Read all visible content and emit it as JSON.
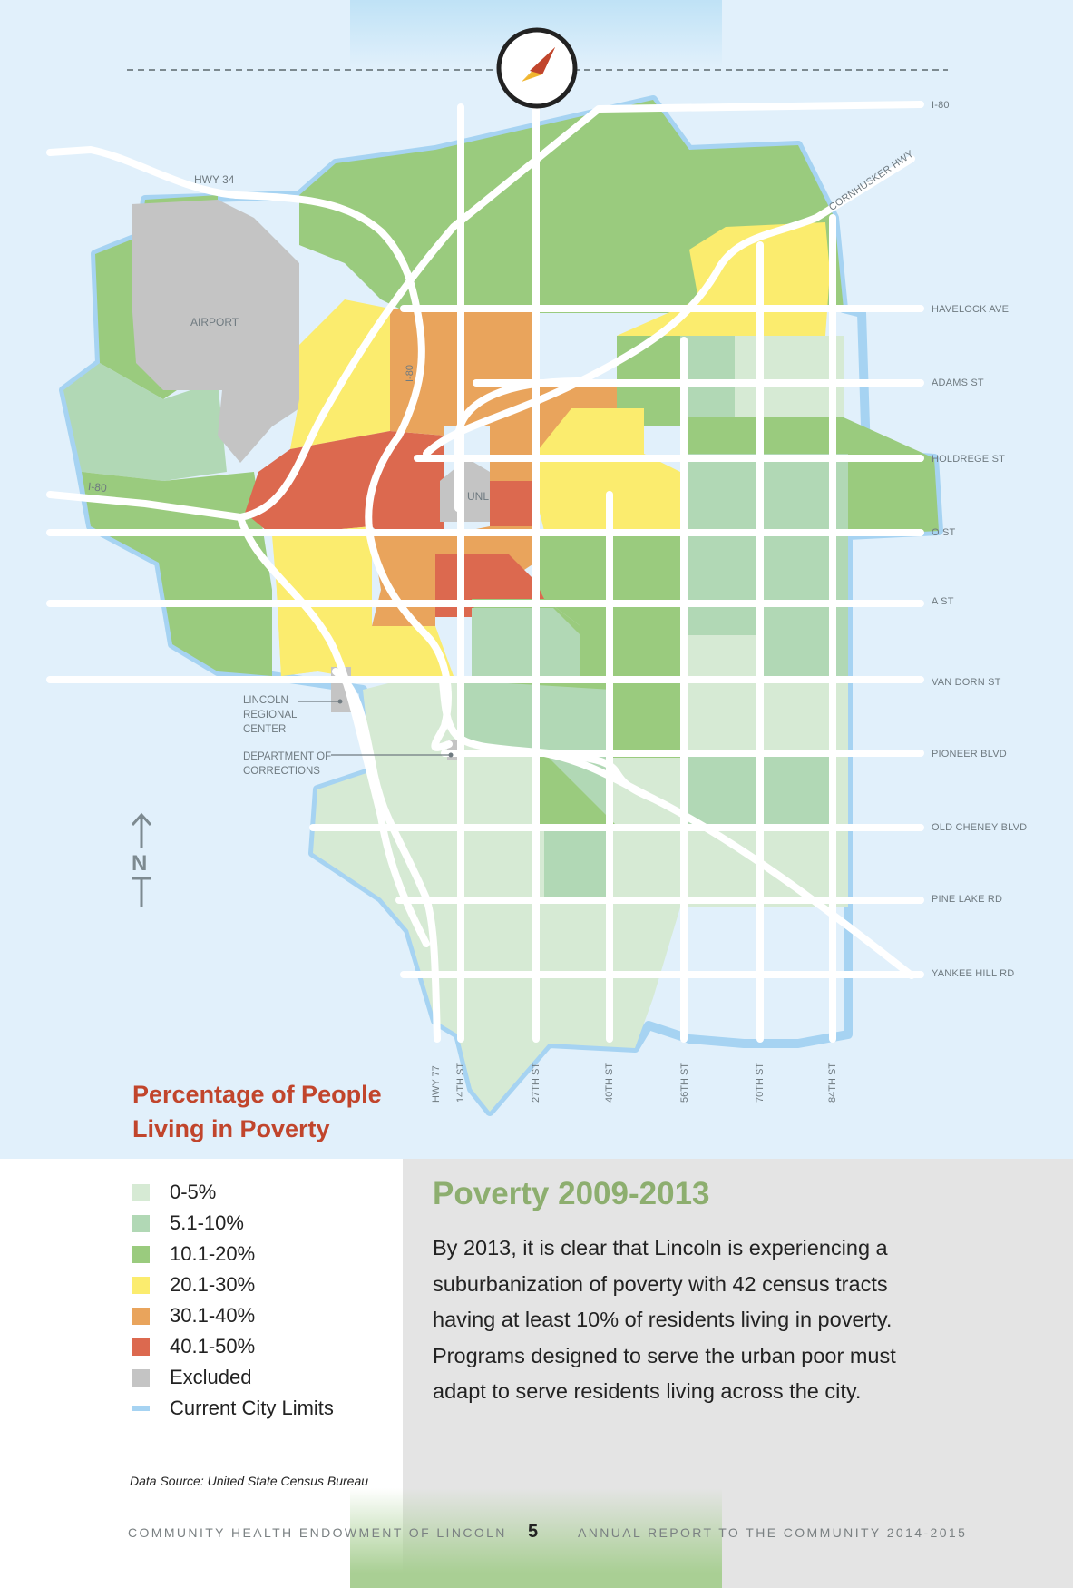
{
  "map": {
    "title_line1": "Percentage of People",
    "title_line2": "Living in Poverty",
    "north_label": "N",
    "place_labels": {
      "airport": "AIRPORT",
      "unl": "UNL",
      "lincoln_regional_center": [
        "LINCOLN",
        "REGIONAL",
        "CENTER"
      ],
      "department_of_corrections": [
        "DEPARTMENT OF",
        "CORRECTIONS"
      ]
    },
    "road_labels": {
      "hwy34": "HWY 34",
      "i80_west": "I-80",
      "i80_diag": "I-80",
      "cornhusker": "CORNHUSKER HWY"
    },
    "east_labels": [
      "I-80",
      "HAVELOCK AVE",
      "ADAMS ST",
      "HOLDREGE ST",
      "O ST",
      "A ST",
      "VAN DORN ST",
      "PIONEER BLVD",
      "OLD CHENEY BLVD",
      "PINE LAKE RD",
      "YANKEE HILL RD"
    ],
    "south_labels": [
      "HWY 77",
      "14TH ST",
      "27TH ST",
      "40TH ST",
      "56TH ST",
      "70TH ST",
      "84TH ST"
    ]
  },
  "legend": {
    "items": [
      {
        "label": "0-5%",
        "color": "#d6ead4"
      },
      {
        "label": "5.1-10%",
        "color": "#b1d8b5"
      },
      {
        "label": "10.1-20%",
        "color": "#9acb7e"
      },
      {
        "label": "20.1-30%",
        "color": "#fbec6e"
      },
      {
        "label": "30.1-40%",
        "color": "#e9a45c"
      },
      {
        "label": "40.1-50%",
        "color": "#dc694f"
      },
      {
        "label": "Excluded",
        "color": "#c4c4c4"
      },
      {
        "label": "Current City Limits",
        "color": "#a6d3f2",
        "line": true
      }
    ]
  },
  "source": "Data Source:  United State Census Bureau",
  "article": {
    "heading": "Poverty 2009-2013",
    "body": "By 2013, it is clear that Lincoln is experiencing a suburbanization of poverty with 42 census tracts having at least 10% of residents living in poverty. Programs designed to serve the urban poor must adapt to serve residents living across the city."
  },
  "footer": {
    "left": "COMMUNITY HEALTH ENDOWMENT OF LINCOLN",
    "page": "5",
    "right": "ANNUAL REPORT TO THE COMMUNITY 2014-2015"
  }
}
